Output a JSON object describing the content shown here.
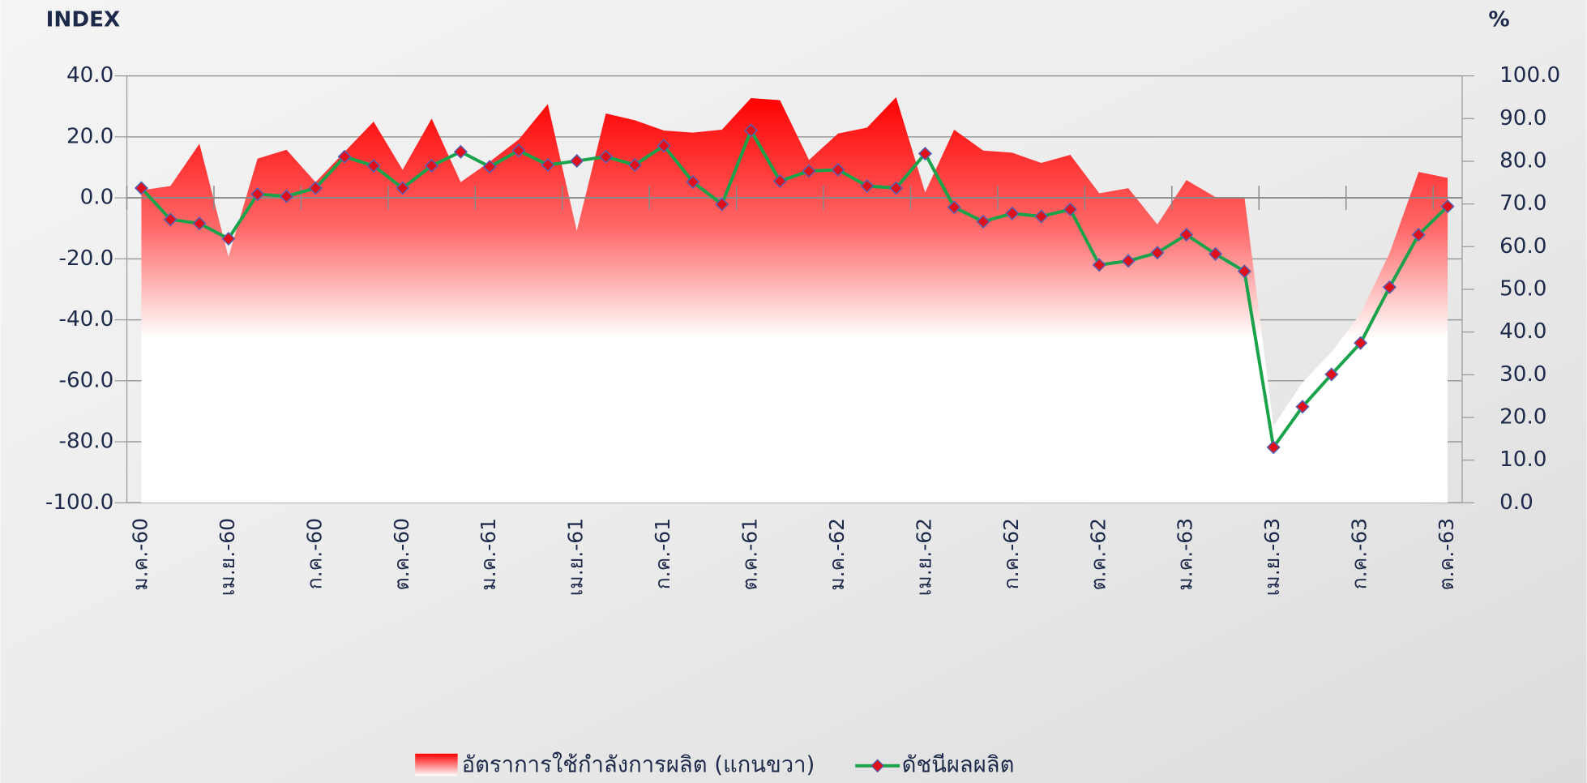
{
  "chart_data": {
    "type": "line",
    "y_label": "INDEX",
    "y2_label": "%",
    "categories": [
      "ม.ค.-60",
      null,
      null,
      "เม.ย.-60",
      null,
      null,
      "ก.ค.-60",
      null,
      null,
      "ต.ค.-60",
      null,
      null,
      "ม.ค.-61",
      null,
      null,
      "เม.ย.-61",
      null,
      null,
      "ก.ค.-61",
      null,
      null,
      "ต.ค.-61",
      null,
      null,
      "ม.ค.-62",
      null,
      null,
      "เม.ย.-62",
      null,
      null,
      "ก.ค.-62",
      null,
      null,
      "ต.ค.-62",
      null,
      null,
      "ม.ค.-63",
      null,
      null,
      "เม.ย.-63",
      null,
      null,
      "ก.ค.-63",
      null,
      null,
      "ต.ค.-63"
    ],
    "series": [
      {
        "name": "อัตราการใช้กำลังการผลิต (แกนขวา)",
        "type": "area",
        "axis": "y2",
        "color": "#ff0000",
        "values": [
          73.2,
          74.2,
          84.1,
          57.6,
          80.6,
          82.7,
          75.1,
          82.2,
          89.3,
          78.0,
          90.0,
          75.1,
          79.9,
          85.1,
          93.4,
          63.7,
          91.2,
          89.6,
          87.2,
          86.7,
          87.4,
          94.8,
          94.3,
          80.3,
          86.5,
          87.9,
          95.0,
          72.7,
          87.4,
          82.5,
          82.0,
          79.6,
          81.5,
          72.5,
          73.7,
          65.2,
          75.6,
          71.6,
          71.6,
          18.0,
          28.2,
          35.3,
          44.3,
          58.5,
          77.5,
          76.1
        ]
      },
      {
        "name": "ดัชนีผลผลิต",
        "type": "line",
        "color": "#1aa34a",
        "marker_color": "#e0101a",
        "values": [
          3.2,
          -7.1,
          -8.4,
          -13.4,
          1.2,
          0.5,
          3.2,
          13.5,
          10.5,
          3.2,
          10.5,
          15.1,
          10.2,
          15.5,
          10.8,
          12.1,
          13.5,
          10.8,
          17.1,
          5.2,
          -2.1,
          22.1,
          5.5,
          8.8,
          9.2,
          3.9,
          3.2,
          14.5,
          -3.1,
          -7.8,
          -5.1,
          -6.1,
          -3.8,
          -22.0,
          -20.7,
          -18.0,
          -12.1,
          -18.4,
          -24.1,
          -81.8,
          -68.5,
          -57.9,
          -47.6,
          -29.3,
          -12.1,
          -2.8
        ]
      }
    ],
    "ylim": [
      -100,
      40
    ],
    "yticks": [
      {
        "value": -100,
        "label": "-100.0"
      },
      {
        "value": -80,
        "label": "-80.0"
      },
      {
        "value": -60,
        "label": "-60.0"
      },
      {
        "value": -40,
        "label": "-40.0"
      },
      {
        "value": -20,
        "label": "-20.0"
      },
      {
        "value": 0,
        "label": "0.0"
      },
      {
        "value": 20,
        "label": "20.0"
      },
      {
        "value": 40,
        "label": "40.0"
      }
    ],
    "y2lim": [
      0,
      100
    ],
    "y2ticks": [
      {
        "value": 0,
        "label": "0.0"
      },
      {
        "value": 10,
        "label": "10.0"
      },
      {
        "value": 20,
        "label": "20.0"
      },
      {
        "value": 30,
        "label": "30.0"
      },
      {
        "value": 40,
        "label": "40.0"
      },
      {
        "value": 50,
        "label": "50.0"
      },
      {
        "value": 60,
        "label": "60.0"
      },
      {
        "value": 70,
        "label": "70.0"
      },
      {
        "value": 80,
        "label": "80.0"
      },
      {
        "value": 90,
        "label": "90.0"
      },
      {
        "value": 100,
        "label": "100.0"
      }
    ],
    "grid": true,
    "legend": "bottom"
  }
}
